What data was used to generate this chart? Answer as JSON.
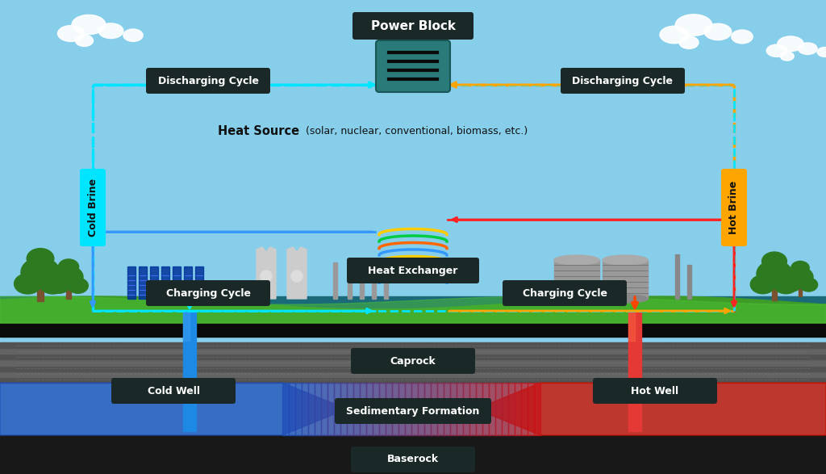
{
  "sky_color": "#87CEEB",
  "grass_color": "#4a9a2a",
  "label_bg": "#1a2828",
  "label_fg": "#ffffff",
  "cyan_color": "#00e5ff",
  "orange_color": "#FFA500",
  "red_color": "#ff2222",
  "blue_color": "#3399ff",
  "teal_color": "#2a7a7a",
  "cold_brine_bg": "#00e5ff",
  "hot_brine_bg": "#FFA500",
  "power_block_text": "Power Block",
  "disch_text": "Discharging Cycle",
  "charg_text": "Charging Cycle",
  "heat_source_bold": "Heat Source",
  "heat_source_rest": " (solar, nuclear, conventional, biomass, etc.)",
  "heat_exchanger_text": "Heat Exchanger",
  "cold_brine_text": "Cold Brine",
  "hot_brine_text": "Hot Brine",
  "cold_well_text": "Cold Well",
  "hot_well_text": "Hot Well",
  "caprock_text": "Caprock",
  "sedimentary_text": "Sedimentary Formation",
  "baserock_text": "Baserock"
}
